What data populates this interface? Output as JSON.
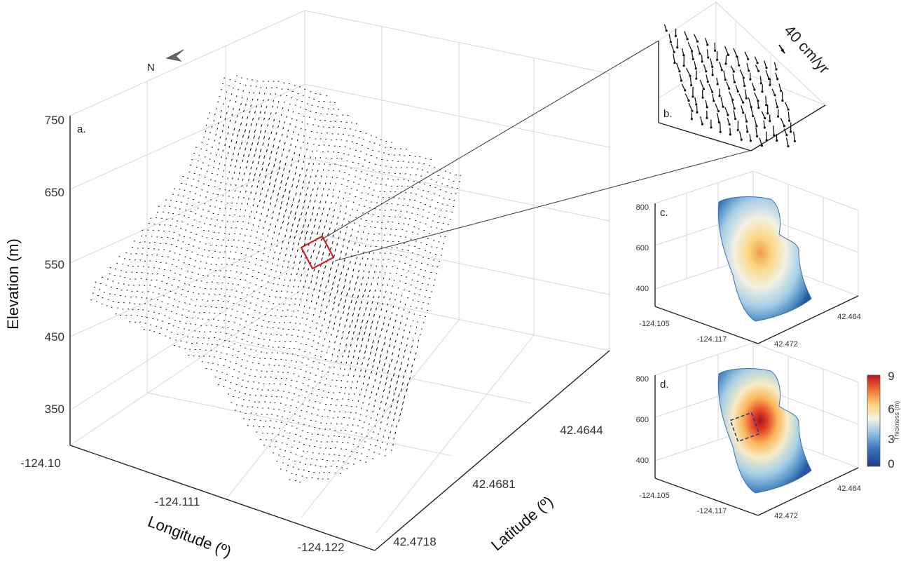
{
  "chart_data": [
    {
      "panel": "a.",
      "type": "scatter",
      "ylabel": "Elevation (m)",
      "xlabel": "Longitude (º)",
      "zlabel": "Latitude (º)",
      "elevation_ticks": [
        "750",
        "650",
        "550",
        "450",
        "350"
      ],
      "longitude_ticks": [
        "-124.10",
        "-124.111",
        "-124.122"
      ],
      "latitude_ticks": [
        "42.4644",
        "42.4681",
        "42.4718"
      ],
      "north_label": "N",
      "elevation_range": [
        300,
        800
      ],
      "longitude_range": [
        -124.1,
        -124.122
      ],
      "latitude_range": [
        42.4644,
        42.4718
      ]
    },
    {
      "panel": "b.",
      "type": "scatter",
      "scale_label": "40 cm/yr"
    },
    {
      "panel": "c.",
      "type": "heatmap",
      "elevation_ticks": [
        "800",
        "600",
        "400"
      ],
      "longitude_ticks": [
        "-124.105",
        "-124.117"
      ],
      "latitude_ticks": [
        "42.464",
        "42.472"
      ]
    },
    {
      "panel": "d.",
      "type": "heatmap",
      "elevation_ticks": [
        "800",
        "600",
        "400"
      ],
      "longitude_ticks": [
        "-124.105",
        "-124.117"
      ],
      "latitude_ticks": [
        "42.464",
        "42.472"
      ],
      "colorbar": {
        "label": "Thickness (m)",
        "ticks": [
          "9",
          "6",
          "3",
          "0"
        ],
        "range": [
          0,
          9
        ],
        "colors": [
          "#1d3a8f",
          "#3b78bd",
          "#9cc8e2",
          "#f3f2e4",
          "#fbd27a",
          "#ee6a34",
          "#b5131e"
        ]
      }
    }
  ]
}
